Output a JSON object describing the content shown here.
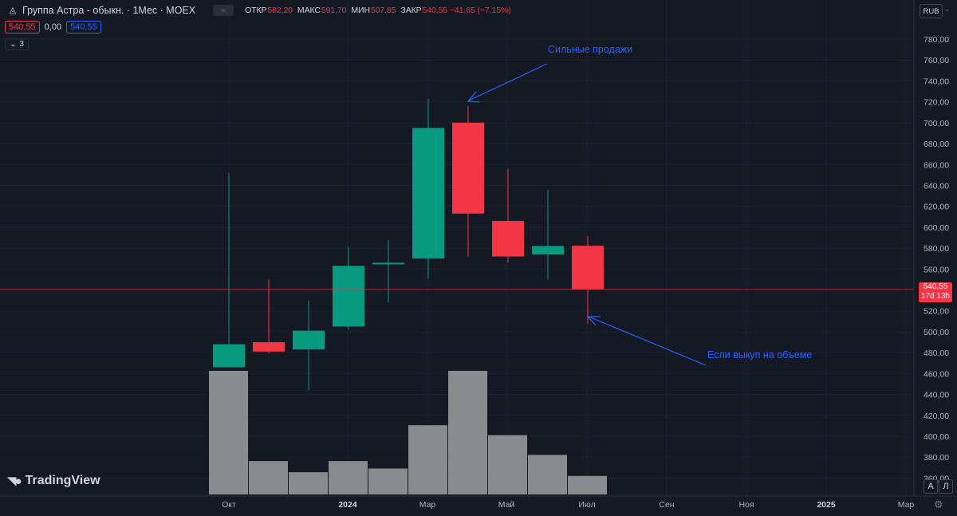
{
  "header": {
    "symbol_title": "Группа Астра - обыкн. · 1Мес · MOEX",
    "tag": "≈",
    "ohlc": [
      {
        "label": "ОТКР",
        "value": "582,20"
      },
      {
        "label": "МАКС",
        "value": "591,70"
      },
      {
        "label": "МИН",
        "value": "507,85"
      },
      {
        "label": "ЗАКР",
        "value": "540,55 −41,65 (−7,15%)"
      }
    ]
  },
  "quote_row": {
    "bid": "540,55",
    "spread": "0,00",
    "ask": "540,55"
  },
  "indicators_toggle": {
    "count": "3"
  },
  "currency": "RUB",
  "logo": {
    "text": "TradingView"
  },
  "price_label": {
    "price": "540,55",
    "countdown": "17d 13h"
  },
  "scale_buttons": {
    "auto": "A",
    "log": "Л"
  },
  "annotations": {
    "top": "Сильные продажи",
    "bottom": "Если выкуп на объеме"
  },
  "colors": {
    "background": "#151924",
    "up": "#089981",
    "down": "#f23645",
    "volume": "#8a8b8f",
    "annotation": "#2962ff",
    "grid": "#1f2330"
  },
  "chart_data": {
    "type": "candlestick",
    "y_axis": {
      "ticks": [
        "780,00",
        "760,00",
        "740,00",
        "720,00",
        "700,00",
        "680,00",
        "660,00",
        "640,00",
        "620,00",
        "600,00",
        "580,00",
        "560,00",
        "540,00",
        "520,00",
        "500,00",
        "480,00",
        "460,00",
        "440,00",
        "420,00",
        "400,00",
        "380,00",
        "360,00"
      ],
      "range": [
        353,
        800
      ]
    },
    "x_axis": {
      "labels": [
        {
          "text": "Окт",
          "bold": false
        },
        {
          "text": "2024",
          "bold": true
        },
        {
          "text": "Мар",
          "bold": false
        },
        {
          "text": "Май",
          "bold": false
        },
        {
          "text": "Июл",
          "bold": false
        },
        {
          "text": "Сен",
          "bold": false
        },
        {
          "text": "Ноя",
          "bold": false
        },
        {
          "text": "2025",
          "bold": true
        },
        {
          "text": "Мар",
          "bold": false
        }
      ]
    },
    "candles": [
      {
        "month": "2023-10",
        "open": 466,
        "high": 652,
        "low": 466,
        "close": 488
      },
      {
        "month": "2023-11",
        "open": 490,
        "high": 550,
        "low": 479,
        "close": 481
      },
      {
        "month": "2023-12",
        "open": 483,
        "high": 530,
        "low": 444,
        "close": 501
      },
      {
        "month": "2024-01",
        "open": 505,
        "high": 581,
        "low": 502,
        "close": 563
      },
      {
        "month": "2024-02",
        "open": 565,
        "high": 588,
        "low": 528,
        "close": 566
      },
      {
        "month": "2024-03",
        "open": 570,
        "high": 723,
        "low": 551,
        "close": 695
      },
      {
        "month": "2024-04",
        "open": 700,
        "high": 716,
        "low": 572,
        "close": 613
      },
      {
        "month": "2024-05",
        "open": 606,
        "high": 656,
        "low": 566,
        "close": 572
      },
      {
        "month": "2024-06",
        "open": 574,
        "high": 636,
        "low": 550,
        "close": 582
      },
      {
        "month": "2024-07",
        "open": 582.2,
        "high": 591.7,
        "low": 507.85,
        "close": 540.55
      }
    ],
    "volume_relative": [
      1.0,
      0.27,
      0.18,
      0.27,
      0.21,
      0.56,
      1.0,
      0.48,
      0.32,
      0.15
    ],
    "current_price": 540.55
  }
}
